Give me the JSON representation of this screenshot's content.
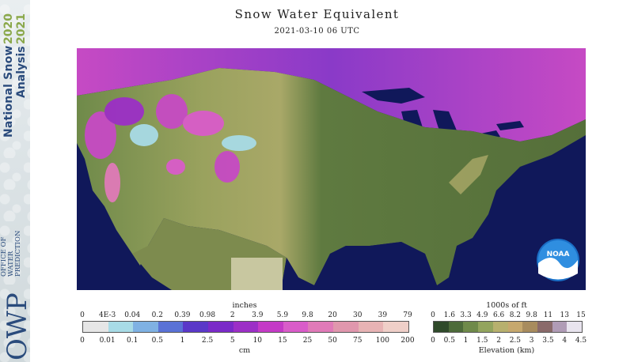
{
  "header": {
    "title": "Snow Water Equivalent",
    "timestamp": "2021-03-10 06 UTC"
  },
  "branding": {
    "product_line1": "National Snow",
    "product_line2": "Analysis",
    "years_line1": "2020",
    "years_line2": "2021",
    "office_big": "OWP",
    "office_small": [
      "OFFICE OF",
      "WATER",
      "PREDICTION"
    ],
    "noaa_logo_text": "NOAA"
  },
  "legend_swe": {
    "units_top": "inches",
    "units_bottom": "cm",
    "inch_labels": [
      "0",
      "4E-3",
      "0.04",
      "0.2",
      "0.39",
      "0.98",
      "2",
      "3.9",
      "5.9",
      "9.8",
      "20",
      "30",
      "39",
      "79"
    ],
    "cm_labels": [
      "0",
      "0.01",
      "0.1",
      "0.5",
      "1",
      "2.5",
      "5",
      "10",
      "15",
      "25",
      "50",
      "75",
      "100",
      "200"
    ],
    "colors": [
      "#e6e6e6",
      "#a8dbe6",
      "#7fb1e3",
      "#5a72d6",
      "#5a38c8",
      "#7a2ac8",
      "#9c2fc6",
      "#c43ac6",
      "#d95cc9",
      "#e07ab8",
      "#e097ad",
      "#e7b3b4",
      "#efcfc8"
    ]
  },
  "legend_elev": {
    "units_top": "1000s of ft",
    "units_bottom": "Elevation (km)",
    "ft_labels": [
      "0",
      "1.6",
      "3.3",
      "4.9",
      "6.6",
      "8.2",
      "9.8",
      "11",
      "13",
      "15"
    ],
    "km_labels": [
      "0",
      "0.5",
      "1",
      "1.5",
      "2",
      "2.5",
      "3",
      "3.5",
      "4",
      "4.5"
    ],
    "colors": [
      "#2f4a2a",
      "#4d6b3a",
      "#6f8a4a",
      "#93a45e",
      "#b7b06e",
      "#c6a86e",
      "#a88c5e",
      "#8a6a6a",
      "#b09cb6",
      "#e8e4ee"
    ]
  },
  "map": {
    "ocean_color": "#10185a",
    "land_color": "#5f7a40",
    "snow_colors": [
      "#8a3ac8",
      "#c64ac4",
      "#a8dbe6",
      "#5a38c8"
    ]
  }
}
